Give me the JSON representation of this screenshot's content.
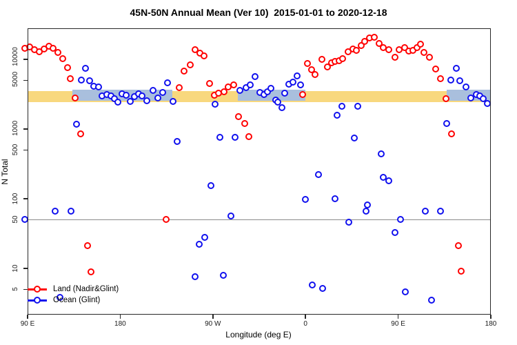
{
  "title": "45N-50N Annual Mean (Ver 10)  2015-01-01 to 2020-12-18",
  "axes": {
    "x_label": "Longitude (deg E)",
    "y_label": "N Total",
    "x_axis_note": "axis spans 450 deg eastward: 90E → 180 → 90W → 0 → 90E → 180; x stored as deg along axis (90..540)",
    "x_ticks": [
      {
        "deg": 90,
        "label": "90 E"
      },
      {
        "deg": 180,
        "label": "180"
      },
      {
        "deg": 270,
        "label": "90 W"
      },
      {
        "deg": 360,
        "label": "0"
      },
      {
        "deg": 450,
        "label": "90 E"
      },
      {
        "deg": 540,
        "label": "180"
      }
    ],
    "y_ticks": [
      {
        "value": 10000,
        "label": "10000"
      },
      {
        "value": 5000,
        "label": "5000"
      },
      {
        "value": 1000,
        "label": "1000"
      },
      {
        "value": 500,
        "label": "500"
      },
      {
        "value": 100,
        "label": "100"
      },
      {
        "value": 50,
        "label": "50"
      },
      {
        "value": 10,
        "label": "10"
      },
      {
        "value": 5,
        "label": "5"
      }
    ],
    "y_scale": "log10",
    "y_range_px_note": "plot box N range approx 2 to 25000"
  },
  "reference_line": {
    "value": 50,
    "color": "#8a8a8a"
  },
  "bands": {
    "yellow": {
      "color": "#F8D87E",
      "n_range": [
        2430,
        3500
      ],
      "deg_segments": [
        [
          90,
          540
        ]
      ]
    },
    "blue": {
      "color": "#A9BFDD",
      "n_range": [
        2550,
        3670
      ],
      "deg_segments": [
        [
          133.5,
          230.6
        ],
        [
          294.2,
          359.9
        ],
        [
          497.1,
          540
        ]
      ]
    }
  },
  "legend": [
    {
      "label": "Land (Nadir&Glint)",
      "color": "#FF0000"
    },
    {
      "label": "Ocean (Glint)",
      "color": "#1010EE"
    }
  ],
  "chart_data": {
    "type": "scatter",
    "title": "45N-50N Annual Mean (Ver 10)  2015-01-01 to 2020-12-18",
    "xlabel": "Longitude (deg E)",
    "ylabel": "N Total",
    "x_axis": {
      "span_deg": [
        90,
        540
      ],
      "tick_labels": [
        "90 E",
        "180",
        "90 W",
        "0",
        "90 E",
        "180"
      ]
    },
    "y_axis": {
      "scale": "log10",
      "ticks": [
        10000,
        5000,
        1000,
        500,
        100,
        50,
        10,
        5
      ]
    },
    "grid": false,
    "legend_position": "bottom-left",
    "series": [
      {
        "name": "Land (Nadir&Glint)",
        "color": "#FF0000",
        "marker": "open-circle",
        "points": [
          [
            87.3,
            14400
          ],
          [
            92,
            15100
          ],
          [
            96.7,
            13800
          ],
          [
            101.4,
            12900
          ],
          [
            106.1,
            14100
          ],
          [
            110.8,
            15400
          ],
          [
            114.8,
            14400
          ],
          [
            119.5,
            12600
          ],
          [
            124.1,
            10200
          ],
          [
            128.8,
            7600
          ],
          [
            131.5,
            5280
          ],
          [
            136.2,
            2790
          ],
          [
            141.6,
            853
          ],
          [
            148.3,
            21
          ],
          [
            151.6,
            8.9
          ],
          [
            224.6,
            50
          ],
          [
            237.3,
            3930
          ],
          [
            242,
            6790
          ],
          [
            248,
            8340
          ],
          [
            252.7,
            13800
          ],
          [
            257.4,
            12300
          ],
          [
            261.4,
            11200
          ],
          [
            266.8,
            4500
          ],
          [
            271.5,
            3050
          ],
          [
            275.5,
            3270
          ],
          [
            280.8,
            3430
          ],
          [
            284.9,
            4020
          ],
          [
            290.2,
            4300
          ],
          [
            294.9,
            1510
          ],
          [
            300.9,
            1200
          ],
          [
            304.9,
            778
          ],
          [
            357.2,
            3130
          ],
          [
            361.9,
            8730
          ],
          [
            365.9,
            7100
          ],
          [
            369.2,
            6050
          ],
          [
            375.9,
            10000
          ],
          [
            381.3,
            7780
          ],
          [
            385.3,
            8910
          ],
          [
            388.6,
            9330
          ],
          [
            392.6,
            9550
          ],
          [
            396,
            10200
          ],
          [
            401.3,
            12900
          ],
          [
            406,
            14100
          ],
          [
            409.4,
            13500
          ],
          [
            414.1,
            15800
          ],
          [
            417.4,
            18100
          ],
          [
            422.1,
            20300
          ],
          [
            426.8,
            20700
          ],
          [
            431.5,
            16900
          ],
          [
            435.5,
            14700
          ],
          [
            440.9,
            13800
          ],
          [
            446.9,
            10700
          ],
          [
            450.9,
            13800
          ],
          [
            456.3,
            14700
          ],
          [
            460.3,
            13200
          ],
          [
            464.3,
            13500
          ],
          [
            468.3,
            14700
          ],
          [
            471.7,
            16500
          ],
          [
            475,
            12600
          ],
          [
            480.4,
            10700
          ],
          [
            486.4,
            7260
          ],
          [
            491.1,
            5280
          ],
          [
            496.4,
            2730
          ],
          [
            501.8,
            853
          ],
          [
            508.5,
            21
          ],
          [
            511.2,
            9.1
          ]
        ]
      },
      {
        "name": "Ocean (Glint)",
        "color": "#1010EE",
        "marker": "open-circle",
        "points": [
          [
            87.5,
            50
          ],
          [
            116.8,
            66
          ],
          [
            121.5,
            3.8
          ],
          [
            132.2,
            66
          ],
          [
            137.5,
            1170
          ],
          [
            142.2,
            5040
          ],
          [
            146.3,
            7430
          ],
          [
            150.3,
            4930
          ],
          [
            154.3,
            4110
          ],
          [
            159,
            4020
          ],
          [
            162.3,
            2980
          ],
          [
            167,
            3130
          ],
          [
            171,
            2980
          ],
          [
            174.4,
            2730
          ],
          [
            177.7,
            2430
          ],
          [
            181.7,
            3200
          ],
          [
            185.7,
            3050
          ],
          [
            189.8,
            2490
          ],
          [
            193.8,
            2910
          ],
          [
            197.8,
            3200
          ],
          [
            201.2,
            2980
          ],
          [
            205.8,
            2540
          ],
          [
            211.9,
            3590
          ],
          [
            216.5,
            2790
          ],
          [
            221.2,
            3350
          ],
          [
            225.9,
            4600
          ],
          [
            231.3,
            2490
          ],
          [
            235.3,
            664
          ],
          [
            252.7,
            7.6
          ],
          [
            256.7,
            22
          ],
          [
            262.1,
            28
          ],
          [
            268.1,
            154
          ],
          [
            272.1,
            2270
          ],
          [
            276.8,
            760
          ],
          [
            280.2,
            8
          ],
          [
            287.5,
            56
          ],
          [
            291.5,
            760
          ],
          [
            296.2,
            3590
          ],
          [
            302.3,
            3890
          ],
          [
            306.3,
            4260
          ],
          [
            311,
            5650
          ],
          [
            315.7,
            3350
          ],
          [
            319.7,
            3130
          ],
          [
            323,
            3430
          ],
          [
            326.4,
            3810
          ],
          [
            331.1,
            2610
          ],
          [
            333.1,
            2430
          ],
          [
            337.1,
            2030
          ],
          [
            339.8,
            3270
          ],
          [
            343.8,
            4400
          ],
          [
            347.8,
            4700
          ],
          [
            351.8,
            5780
          ],
          [
            355.2,
            4260
          ],
          [
            359.9,
            98
          ],
          [
            366.6,
            5.8
          ],
          [
            372.6,
            222
          ],
          [
            376.6,
            5.2
          ],
          [
            388.6,
            100
          ],
          [
            390.6,
            1580
          ],
          [
            395.3,
            2120
          ],
          [
            402,
            46
          ],
          [
            407.4,
            750
          ],
          [
            410.7,
            2100
          ],
          [
            418.7,
            67
          ],
          [
            420.1,
            81
          ],
          [
            433.5,
            441
          ],
          [
            435.5,
            203
          ],
          [
            440.9,
            181
          ],
          [
            446.9,
            33
          ],
          [
            452.3,
            50
          ],
          [
            457,
            4.6
          ],
          [
            476.4,
            66
          ],
          [
            482.4,
            3.5
          ],
          [
            491.1,
            66
          ],
          [
            497.1,
            1200
          ],
          [
            501.1,
            5040
          ],
          [
            506.5,
            7430
          ],
          [
            509.8,
            4930
          ],
          [
            515.9,
            4020
          ],
          [
            520.5,
            2790
          ],
          [
            525.9,
            3130
          ],
          [
            529.3,
            2980
          ],
          [
            532.6,
            2730
          ],
          [
            536.6,
            2320
          ]
        ]
      }
    ]
  }
}
